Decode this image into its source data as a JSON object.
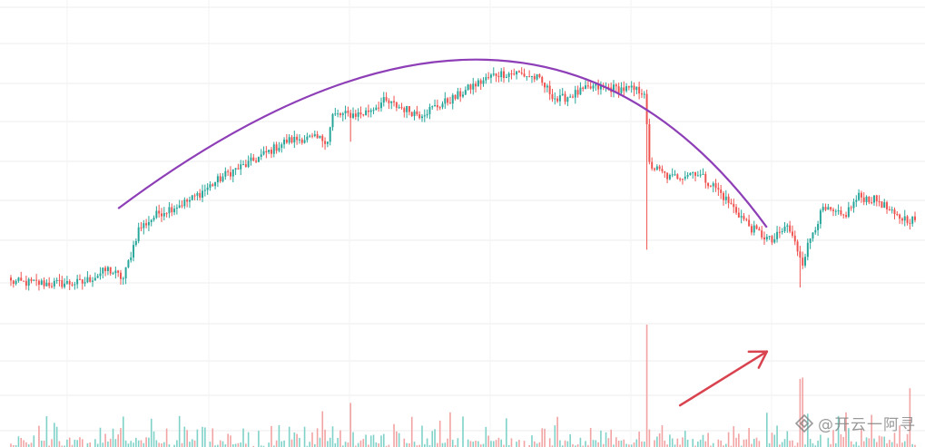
{
  "chart_data": {
    "type": "candlestick",
    "title": "",
    "xlabel": "",
    "ylabel": "",
    "grid": true,
    "colors": {
      "up": "#26a69a",
      "down": "#ef5350",
      "curve": "#8e3fb7",
      "arrow": "#d9434f",
      "grid": "#eeeeee"
    },
    "price_range": [
      0,
      100
    ],
    "volume_range": [
      0,
      100
    ],
    "anchors": [
      [
        0,
        12.2
      ],
      [
        16,
        11.6
      ],
      [
        28,
        11.9
      ],
      [
        38,
        16.5
      ],
      [
        44,
        13.3
      ],
      [
        50,
        30.4
      ],
      [
        58,
        36.0
      ],
      [
        70,
        40.3
      ],
      [
        85,
        49.7
      ],
      [
        93,
        53.0
      ],
      [
        108,
        60.8
      ],
      [
        114,
        61.7
      ],
      [
        124,
        61.3
      ],
      [
        126,
        69.6
      ],
      [
        138,
        70.2
      ],
      [
        146,
        74.4
      ],
      [
        160,
        70.0
      ],
      [
        174,
        75.8
      ],
      [
        180,
        79.3
      ],
      [
        190,
        83.9
      ],
      [
        198,
        84.2
      ],
      [
        206,
        82.4
      ],
      [
        214,
        74.8
      ],
      [
        220,
        76.8
      ],
      [
        228,
        79.3
      ],
      [
        240,
        78.7
      ],
      [
        248,
        77.9
      ],
      [
        250,
        52.6
      ],
      [
        258,
        48.0
      ],
      [
        268,
        50.2
      ],
      [
        276,
        44.6
      ],
      [
        290,
        30.7
      ],
      [
        298,
        26.1
      ],
      [
        304,
        31.6
      ],
      [
        310,
        19.3
      ],
      [
        314,
        29.8
      ],
      [
        318,
        37.1
      ],
      [
        326,
        34.7
      ],
      [
        332,
        41.6
      ],
      [
        340,
        40.1
      ],
      [
        346,
        34.7
      ],
      [
        354,
        33.5
      ]
    ],
    "spike_bars": [
      133,
      249,
      309
    ],
    "curve": {
      "start_index": 42,
      "peak_index": 186,
      "end_index": 296,
      "start_value": 37.5,
      "peak_value": 88.8,
      "end_value": 31.0
    },
    "annotation_arrow": {
      "from_index": 262,
      "from_volume": 34,
      "to_index": 296,
      "to_volume": 78
    }
  },
  "watermark": {
    "text": "@开云一阿寻",
    "icon": "diamond-logo-icon"
  }
}
